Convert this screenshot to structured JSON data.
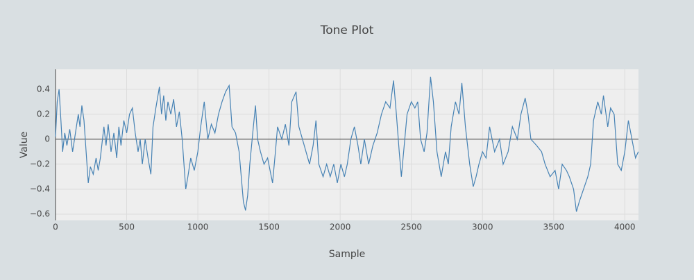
{
  "chart_data": {
    "type": "line",
    "title": "Tone Plot",
    "x_label": "Sample",
    "y_label": "Value",
    "x": [
      0,
      12,
      25,
      38,
      50,
      65,
      80,
      100,
      120,
      140,
      160,
      172,
      185,
      200,
      215,
      230,
      245,
      265,
      285,
      300,
      315,
      340,
      355,
      370,
      390,
      410,
      430,
      445,
      460,
      480,
      500,
      520,
      540,
      560,
      580,
      595,
      610,
      630,
      650,
      670,
      685,
      705,
      730,
      745,
      760,
      775,
      790,
      810,
      830,
      850,
      870,
      890,
      915,
      930,
      950,
      975,
      1000,
      1020,
      1045,
      1070,
      1095,
      1120,
      1145,
      1170,
      1195,
      1220,
      1240,
      1265,
      1290,
      1320,
      1335,
      1350,
      1365,
      1390,
      1405,
      1420,
      1440,
      1465,
      1490,
      1525,
      1545,
      1560,
      1590,
      1615,
      1640,
      1660,
      1690,
      1710,
      1735,
      1760,
      1785,
      1810,
      1830,
      1850,
      1880,
      1905,
      1930,
      1955,
      1980,
      2005,
      2030,
      2050,
      2075,
      2100,
      2125,
      2145,
      2170,
      2200,
      2230,
      2260,
      2290,
      2320,
      2350,
      2375,
      2395,
      2415,
      2430,
      2450,
      2470,
      2500,
      2525,
      2545,
      2565,
      2590,
      2610,
      2635,
      2655,
      2680,
      2710,
      2740,
      2760,
      2780,
      2810,
      2835,
      2855,
      2880,
      2910,
      2935,
      2955,
      2975,
      3000,
      3025,
      3050,
      3085,
      3120,
      3145,
      3180,
      3210,
      3245,
      3270,
      3300,
      3320,
      3340,
      3380,
      3415,
      3440,
      3475,
      3510,
      3535,
      3560,
      3590,
      3610,
      3640,
      3660,
      3680,
      3710,
      3740,
      3760,
      3780,
      3810,
      3835,
      3850,
      3880,
      3900,
      3925,
      3950,
      3975,
      4000,
      4025,
      4050,
      4075,
      4095
    ],
    "series": [
      {
        "name": "Tone",
        "color": "#4682b4",
        "values": [
          0.02,
          0.3,
          0.4,
          0.15,
          -0.1,
          0.05,
          -0.05,
          0.08,
          -0.1,
          0.05,
          0.2,
          0.1,
          0.27,
          0.15,
          -0.1,
          -0.35,
          -0.22,
          -0.28,
          -0.15,
          -0.25,
          -0.15,
          0.1,
          -0.05,
          0.12,
          -0.1,
          0.05,
          -0.15,
          0.1,
          -0.05,
          0.15,
          0.05,
          0.2,
          0.25,
          0.05,
          -0.1,
          0.0,
          -0.2,
          0.0,
          -0.15,
          -0.28,
          0.1,
          0.25,
          0.42,
          0.2,
          0.35,
          0.15,
          0.3,
          0.2,
          0.32,
          0.1,
          0.22,
          0.0,
          -0.4,
          -0.3,
          -0.15,
          -0.25,
          -0.1,
          0.1,
          0.3,
          0.0,
          0.12,
          0.05,
          0.2,
          0.3,
          0.38,
          0.43,
          0.1,
          0.05,
          -0.1,
          -0.5,
          -0.57,
          -0.45,
          -0.2,
          0.1,
          0.27,
          0.0,
          -0.1,
          -0.2,
          -0.15,
          -0.35,
          -0.1,
          0.1,
          0.0,
          0.12,
          -0.05,
          0.3,
          0.38,
          0.1,
          0.0,
          -0.1,
          -0.2,
          -0.05,
          0.15,
          -0.2,
          -0.3,
          -0.2,
          -0.3,
          -0.2,
          -0.35,
          -0.2,
          -0.3,
          -0.2,
          0.0,
          0.1,
          -0.05,
          -0.2,
          0.0,
          -0.2,
          -0.05,
          0.05,
          0.2,
          0.3,
          0.25,
          0.47,
          0.2,
          -0.1,
          -0.3,
          -0.05,
          0.2,
          0.3,
          0.25,
          0.3,
          0.0,
          -0.1,
          0.05,
          0.5,
          0.3,
          -0.1,
          -0.3,
          -0.1,
          -0.2,
          0.1,
          0.3,
          0.2,
          0.45,
          0.1,
          -0.2,
          -0.38,
          -0.3,
          -0.2,
          -0.1,
          -0.15,
          0.1,
          -0.1,
          0.0,
          -0.2,
          -0.1,
          0.1,
          0.0,
          0.2,
          0.33,
          0.2,
          0.0,
          -0.05,
          -0.1,
          -0.2,
          -0.3,
          -0.25,
          -0.4,
          -0.2,
          -0.25,
          -0.3,
          -0.4,
          -0.58,
          -0.5,
          -0.4,
          -0.3,
          -0.2,
          0.15,
          0.3,
          0.2,
          0.35,
          0.1,
          0.25,
          0.2,
          -0.2,
          -0.25,
          -0.1,
          0.15,
          0.0,
          -0.15,
          -0.1
        ]
      }
    ],
    "xlim": [
      0,
      4096
    ],
    "xticks": [
      0,
      500,
      1000,
      1500,
      2000,
      2500,
      3000,
      3500,
      4000
    ],
    "ylim": [
      -0.65,
      0.56
    ],
    "yticks": [
      {
        "value": -0.6,
        "label": "−0.6"
      },
      {
        "value": -0.4,
        "label": "−0.4"
      },
      {
        "value": -0.2,
        "label": "−0.2"
      },
      0,
      0.2,
      0.4
    ],
    "grid": true
  }
}
